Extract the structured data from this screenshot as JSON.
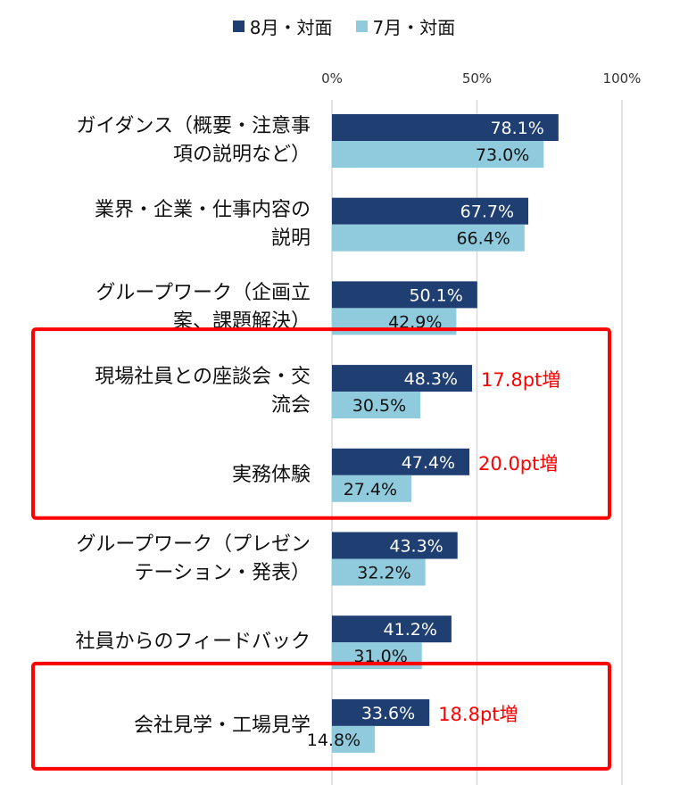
{
  "chart_data": {
    "type": "bar",
    "orientation": "horizontal",
    "categories": [
      "ガイダンス（概要・注意事\n項の説明など）",
      "業界・企業・仕事内容の\n説明",
      "グループワーク（企画立\n案、課題解決）",
      "現場社員との座談会・交\n流会",
      "実務体験",
      "グループワーク（プレゼン\nテーション・発表）",
      "社員からのフィードバック",
      "会社見学・工場見学"
    ],
    "series": [
      {
        "name": "8月・対面",
        "color": "#1f3f73",
        "values": [
          78.1,
          67.7,
          50.1,
          48.3,
          47.4,
          43.3,
          41.2,
          33.6
        ],
        "labels": [
          "78.1%",
          "67.7%",
          "50.1%",
          "48.3%",
          "47.4%",
          "43.3%",
          "41.2%",
          "33.6%"
        ]
      },
      {
        "name": "7月・対面",
        "color": "#8fcadd",
        "values": [
          73.0,
          66.4,
          42.9,
          30.5,
          27.4,
          32.2,
          31.0,
          14.8
        ],
        "labels": [
          "73.0%",
          "66.4%",
          "42.9%",
          "30.5%",
          "27.4%",
          "32.2%",
          "31.0%",
          "14.8%"
        ]
      }
    ],
    "xlim": [
      0,
      100
    ],
    "xticks": [
      "0%",
      "50%",
      "100%"
    ],
    "grid": true,
    "legend": "top-center",
    "annotations": [
      {
        "category": "現場社員との座談会・交\n流会",
        "text": "17.8pt増",
        "color": "#ff0000"
      },
      {
        "category": "実務体験",
        "text": "20.0pt増",
        "color": "#ff0000"
      },
      {
        "category": "会社見学・工場見学",
        "text": "18.8pt増",
        "color": "#ff0000"
      }
    ],
    "highlight_groups": [
      {
        "categories": [
          "現場社員との座談会・交\n流会",
          "実務体験"
        ],
        "color": "#ff0000"
      },
      {
        "categories": [
          "会社見学・工場見学"
        ],
        "color": "#ff0000"
      }
    ]
  }
}
